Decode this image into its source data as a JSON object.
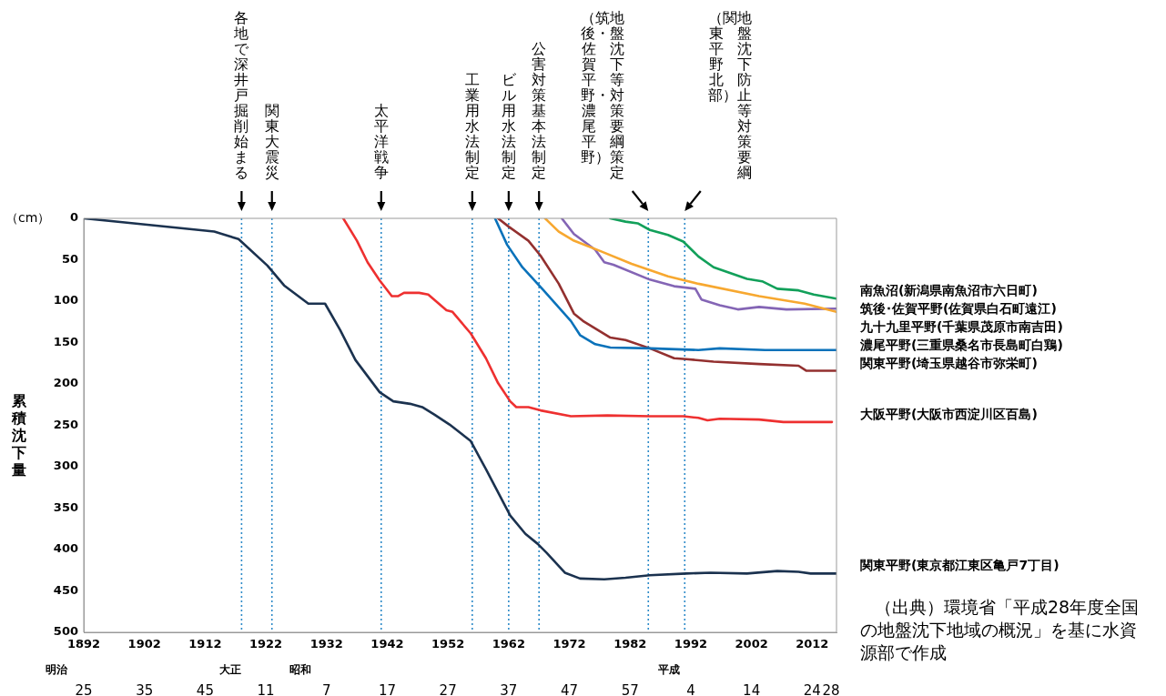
{
  "chart_data": {
    "type": "line",
    "ylabel": "累積沈下量",
    "xlim": [
      1892,
      2016
    ],
    "xticks": [
      1892,
      1902,
      1912,
      1922,
      1932,
      1942,
      1952,
      1962,
      1972,
      1982,
      1992,
      2002,
      2012
    ],
    "ylim": [
      500,
      0
    ],
    "yticks": [
      0,
      50,
      100,
      150,
      200,
      250,
      300,
      350,
      400,
      450,
      500
    ],
    "grid": false,
    "legend": "right",
    "marker": "none",
    "line_style": "solid",
    "series": [
      {
        "name": "南魚沼(新潟県南魚沼市六日町)",
        "color": "#12a05a",
        "x": [
          1978.75,
          1981.25,
          1983.25,
          1985.25,
          1988.25,
          1990.75,
          1993.25,
          1995.75,
          2001.25,
          2003.75,
          2006.25,
          2009.75,
          2012.25,
          2016
        ],
        "values": [
          0,
          4,
          6,
          14,
          20,
          28,
          46,
          59,
          73,
          76,
          85,
          87,
          92,
          97
        ]
      },
      {
        "name": "筑後･佐賀平野(佐賀県白石町遠江)",
        "color": "#f7a830",
        "x": [
          1968,
          1970.25,
          1972.75,
          1977.25,
          1982.25,
          1988.25,
          1993.25,
          2003.25,
          2010.75,
          2016
        ],
        "values": [
          0,
          16,
          27,
          40,
          55,
          70,
          79,
          94,
          103,
          113
        ]
      },
      {
        "name": "九十九里平野(千葉県茂原市南吉田)",
        "color": "#8465b5",
        "x": [
          1970.75,
          1972.75,
          1976.25,
          1977.75,
          1979.25,
          1985.25,
          1989.25,
          1992.75,
          1993.75,
          1996.75,
          1999.75,
          2003.25,
          2007.75,
          2016
        ],
        "values": [
          0,
          19,
          38,
          53,
          56,
          74,
          82,
          85,
          98,
          105,
          110,
          107,
          110,
          109
        ]
      },
      {
        "name": "濃尾平野(三重県桑名市長島町白鶏)",
        "color": "#0a72ba",
        "x": [
          1959.75,
          1961.75,
          1964.25,
          1967.75,
          1972.25,
          1973.75,
          1976.25,
          1978.75,
          1985.25,
          1993.25,
          1996.75,
          2004.25,
          2016
        ],
        "values": [
          0,
          32,
          59,
          87,
          124,
          141,
          152,
          156,
          157,
          159,
          157,
          159,
          159
        ]
      },
      {
        "name": "関東平野(埼玉県越谷市弥栄町)",
        "color": "#93302f",
        "x": [
          1960.25,
          1962,
          1965.25,
          1967.25,
          1970.25,
          1972.75,
          1974.25,
          1978.75,
          1981.25,
          1985.25,
          1989.25,
          1991.25,
          1995.75,
          2003.25,
          2009.75,
          2011,
          2016
        ],
        "values": [
          0,
          10,
          27,
          45,
          79,
          115,
          124,
          144,
          147,
          157,
          169,
          170,
          173,
          176,
          178,
          184,
          184
        ]
      },
      {
        "name": "大阪平野(大阪市西淀川区百島)",
        "color": "#ee3030",
        "x": [
          1934.75,
          1937,
          1938.75,
          1940.75,
          1942.75,
          1943.75,
          1944.75,
          1947.25,
          1948.75,
          1951.75,
          1952.75,
          1955.75,
          1958.25,
          1960.25,
          1962.25,
          1963.25,
          1965.25,
          1967.25,
          1972.25,
          1978.25,
          1985.25,
          1990.75,
          1993.25,
          1994.75,
          1996.75,
          2003.25,
          2007.25,
          2015.25
        ],
        "values": [
          0,
          27,
          53,
          75,
          94,
          94,
          90,
          90,
          92,
          111,
          113,
          139,
          169,
          199,
          221,
          228,
          228,
          232,
          239,
          238,
          239,
          239,
          241,
          244,
          242,
          243,
          246,
          246
        ]
      },
      {
        "name": "関東平野(東京都江東区亀戸7丁目)",
        "color": "#1b324f",
        "x": [
          1892,
          1900.25,
          1913.5,
          1917.5,
          1922.25,
          1925,
          1929,
          1931.75,
          1934.25,
          1936.75,
          1940.75,
          1943,
          1945.75,
          1947.75,
          1949.75,
          1952.25,
          1955.75,
          1958.25,
          1962.25,
          1964.75,
          1966.75,
          1968.25,
          1971.25,
          1973.75,
          1977.75,
          1981.25,
          1985.25,
          1991.25,
          1995.25,
          2001.25,
          2006.25,
          2009.75,
          2011.75,
          2016
        ],
        "values": [
          0,
          6,
          16,
          25,
          57,
          81,
          103,
          103,
          135,
          171,
          210,
          221,
          224,
          228,
          237,
          249,
          269,
          303,
          359,
          381,
          393,
          404,
          428,
          435,
          436,
          434,
          431,
          429,
          428,
          429,
          426,
          427,
          429,
          429
        ]
      }
    ],
    "ref_lines": [
      {
        "axis": "x",
        "value": 1918,
        "label": "各地で深井戸掘削始まる",
        "color": "#2e8bc9",
        "line_style": "dotted"
      },
      {
        "axis": "x",
        "value": 1923,
        "label": "関東大震災",
        "color": "#2e8bc9",
        "line_style": "dotted"
      },
      {
        "axis": "x",
        "value": 1941,
        "label": "太平洋戦争",
        "color": "#2e8bc9",
        "line_style": "dotted"
      },
      {
        "axis": "x",
        "value": 1956,
        "label": "工業用水法制定",
        "color": "#2e8bc9",
        "line_style": "dotted"
      },
      {
        "axis": "x",
        "value": 1962,
        "label": "ビル用水法制定",
        "color": "#2e8bc9",
        "line_style": "dotted"
      },
      {
        "axis": "x",
        "value": 1967,
        "label": "公害対策基本法制定",
        "color": "#2e8bc9",
        "line_style": "dotted"
      },
      {
        "axis": "x",
        "value": 1985,
        "label": "地盤沈下等対策要綱策定（筑後・佐賀平野・濃尾平野）",
        "color": "#2e8bc9",
        "line_style": "dotted"
      },
      {
        "axis": "x",
        "value": 1991,
        "label": "地盤沈下防止等対策要綱（関東平野北部）",
        "color": "#2e8bc9",
        "line_style": "dotted"
      }
    ],
    "annotations": [
      "（cm）",
      "（出典）環境省「平成28年度全国の地盤沈下地域の概況」を基に水資源部で作成",
      "明治",
      "大正",
      "昭和",
      "平成",
      "25",
      "35",
      "45",
      "11",
      "7",
      "17",
      "27",
      "37",
      "47",
      "57",
      "4",
      "14",
      "24",
      "28"
    ]
  }
}
